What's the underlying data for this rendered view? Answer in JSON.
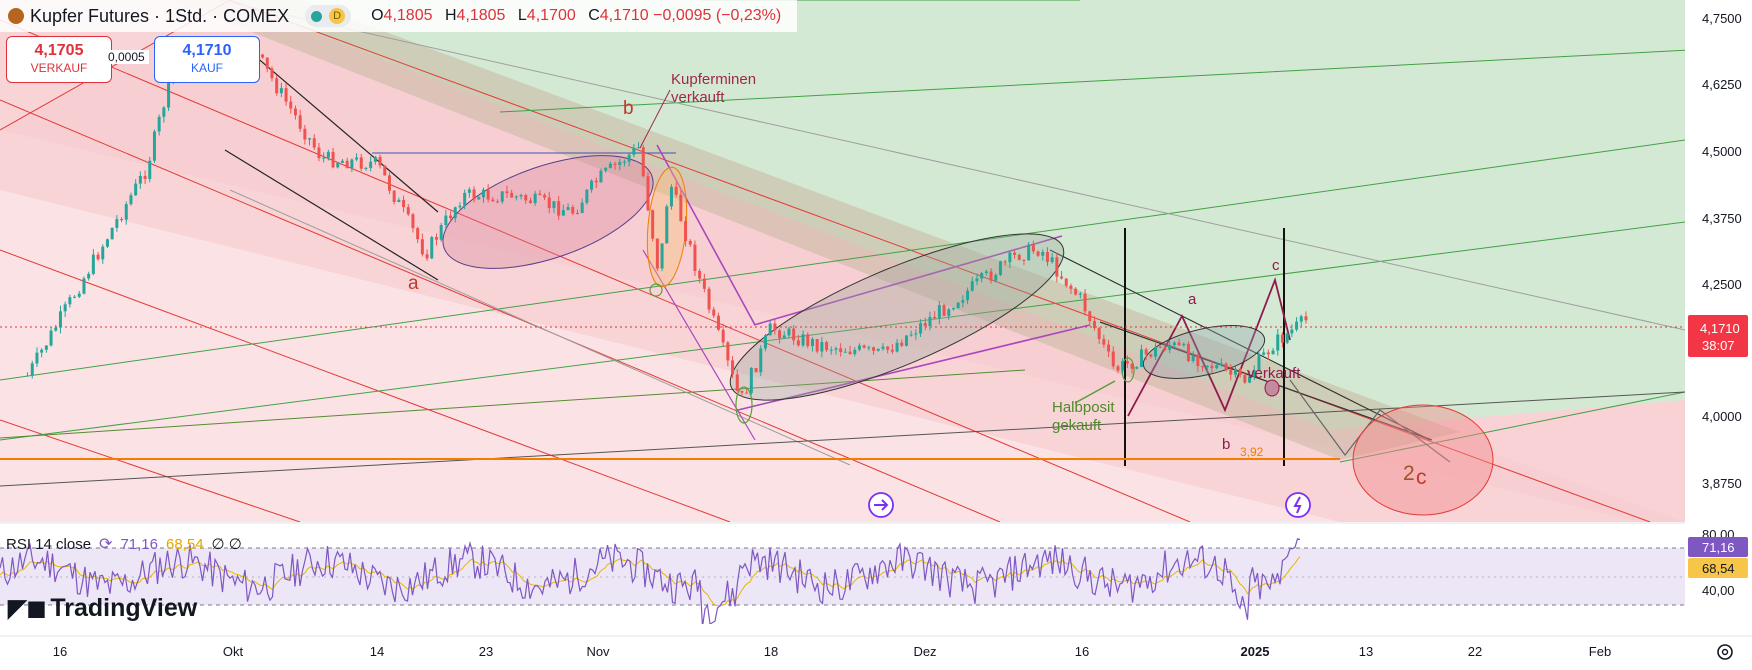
{
  "header": {
    "symbol": "Kupfer Futures · 1Std. · COMEX",
    "status_letter": "D",
    "ohlc": [
      {
        "k": "O",
        "v": "4,1805"
      },
      {
        "k": "H",
        "v": "4,1805"
      },
      {
        "k": "L",
        "v": "4,1700"
      },
      {
        "k": "C",
        "v": "4,1710 −0,0095 (−0,23%)"
      }
    ]
  },
  "trade": {
    "sell_price": "4,1705",
    "sell_label": "VERKAUF",
    "spread": "0,0005",
    "buy_price": "4,1710",
    "buy_label": "KAUF"
  },
  "price_axis": {
    "ticks": [
      "4,7500",
      "4,6250",
      "4,5000",
      "4,3750",
      "4,2500",
      "4,0000",
      "3,8750"
    ],
    "last_price": "4,1710",
    "countdown": "38:07"
  },
  "time_axis": [
    "16",
    "Okt",
    "14",
    "23",
    "Nov",
    "18",
    "Dez",
    "16",
    "2025",
    "13",
    "22",
    "Feb"
  ],
  "annotations": {
    "kupferminen": "Kupferminen",
    "verkauft1": "verkauft",
    "a_left": "a",
    "b_left": "b",
    "halbposit": "Halbposit",
    "gekauft": "gekauft",
    "a_right": "a",
    "b_right": "b",
    "c_right": "c",
    "verkauft2": "verkauft",
    "level": "3,92",
    "wave_2": "2",
    "wave_c": "c"
  },
  "rsi": {
    "label": "RSI 14 close",
    "value1": "71,16",
    "value2": "68,54",
    "empty": "∅ ∅",
    "ticks": [
      "80,00",
      "40,00"
    ],
    "badge1": "71,16",
    "badge2": "68,54"
  },
  "branding": {
    "name": "TradingView"
  },
  "colors": {
    "up": "#26a69a",
    "down": "#ef5350",
    "bear_zone": "#f8c8cc",
    "bull_zone": "#cfe8d0",
    "rsi_line": "#7e57c2",
    "rsi_ma": "#e6b800",
    "last_price_bg": "#f23645"
  },
  "chart_data": {
    "type": "candlestick",
    "interval": "1 hour",
    "ylim": [
      3.82,
      4.78
    ],
    "last_price": 4.171,
    "level_marked": 3.92,
    "anchors": [
      {
        "t": "Sep 13",
        "p": 4.06
      },
      {
        "t": "Sep 24",
        "p": 4.45
      },
      {
        "t": "Sep 27",
        "p": 4.68
      },
      {
        "t": "Okt 1",
        "p": 4.63
      },
      {
        "t": "Okt 3",
        "p": 4.67
      },
      {
        "t": "Okt 9",
        "p": 4.47
      },
      {
        "t": "Okt 14",
        "p": 4.46
      },
      {
        "t": "Okt 18",
        "p": 4.29
      },
      {
        "t": "Okt 21",
        "p": 4.4
      },
      {
        "t": "Okt 25",
        "p": 4.4
      },
      {
        "t": "Okt 30",
        "p": 4.37
      },
      {
        "t": "Nov 1",
        "p": 4.43
      },
      {
        "t": "Nov 5",
        "p": 4.49
      },
      {
        "t": "Nov 7",
        "p": 4.25
      },
      {
        "t": "Nov 8",
        "p": 4.43
      },
      {
        "t": "Nov 11",
        "p": 4.24
      },
      {
        "t": "Nov 15",
        "p": 4.01
      },
      {
        "t": "Nov 18",
        "p": 4.15
      },
      {
        "t": "Nov 22",
        "p": 4.12
      },
      {
        "t": "Nov 28",
        "p": 4.1
      },
      {
        "t": "Dez 3",
        "p": 4.19
      },
      {
        "t": "Dez 10",
        "p": 4.29
      },
      {
        "t": "Dez 12",
        "p": 4.3
      },
      {
        "t": "Dez 16",
        "p": 4.2
      },
      {
        "t": "Dez 19",
        "p": 4.07
      },
      {
        "t": "Dez 24",
        "p": 4.12
      },
      {
        "t": "Dez 31",
        "p": 4.05
      },
      {
        "t": "Jan 3",
        "p": 4.12
      },
      {
        "t": "Jan 7",
        "p": 4.17
      }
    ],
    "rsi_last": 71.16,
    "rsi_ma_last": 68.54,
    "rsi_levels": [
      70,
      50,
      30
    ],
    "rsi_ylim": [
      10,
      90
    ]
  }
}
